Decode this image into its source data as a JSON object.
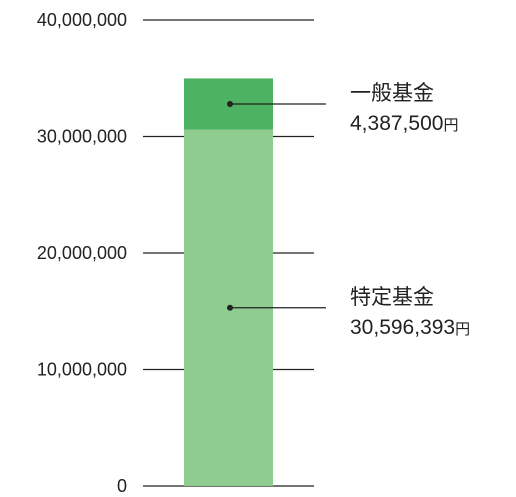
{
  "chart_data": {
    "type": "bar",
    "stacked": true,
    "ylim": [
      0,
      40000000
    ],
    "yticks": [
      0,
      10000000,
      20000000,
      30000000,
      40000000
    ],
    "ytick_labels": [
      "0",
      "10,000,000",
      "20,000,000",
      "30,000,000",
      "40,000,000"
    ],
    "series": [
      {
        "name": "特定基金",
        "value": 30596393,
        "value_label": "30,596,393",
        "unit": "円",
        "color": "#8fcc8f"
      },
      {
        "name": "一般基金",
        "value": 4387500,
        "value_label": "4,387,500",
        "unit": "円",
        "color": "#4db262"
      }
    ],
    "axis_line_color": "#222222",
    "leader_color": "#222222"
  }
}
